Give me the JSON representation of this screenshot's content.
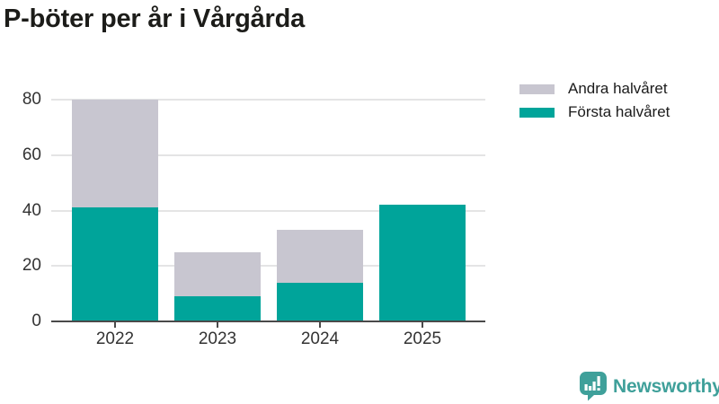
{
  "title": "P-böter per år i Vårgårda",
  "legend": {
    "items": [
      {
        "label": "Andra halvåret",
        "color": "#c8c6d0"
      },
      {
        "label": "Första halvåret",
        "color": "#00a49a"
      }
    ]
  },
  "chart_data": {
    "type": "bar",
    "stacked": true,
    "title": "P-böter per år i Vårgårda",
    "categories": [
      "2022",
      "2023",
      "2024",
      "2025"
    ],
    "series": [
      {
        "name": "Första halvåret",
        "color": "#00a49a",
        "values": [
          41,
          9,
          14,
          42
        ]
      },
      {
        "name": "Andra halvåret",
        "color": "#c8c6d0",
        "values": [
          39,
          16,
          19,
          0
        ]
      }
    ],
    "totals": [
      80,
      25,
      33,
      42
    ],
    "xlabel": "",
    "ylabel": "",
    "ylim": [
      0,
      80
    ],
    "yticks": [
      0,
      20,
      40,
      60,
      80
    ],
    "ytick_labels": [
      "0",
      "20",
      "40",
      "60",
      "80"
    ],
    "grid": true,
    "legend_position": "top-right"
  },
  "footer": {
    "brand": "Newsworthy",
    "brand_color": "#3fa09a",
    "icon": "newsworthy-barchart-speech-bubble-icon"
  },
  "colors": {
    "background": "#ffffff",
    "first_half": "#00a49a",
    "second_half": "#c8c6d0",
    "gridline": "#e4e4e5",
    "axis": "#4a4a4a",
    "tick_text": "#333333",
    "title_text": "#1c1c19"
  }
}
